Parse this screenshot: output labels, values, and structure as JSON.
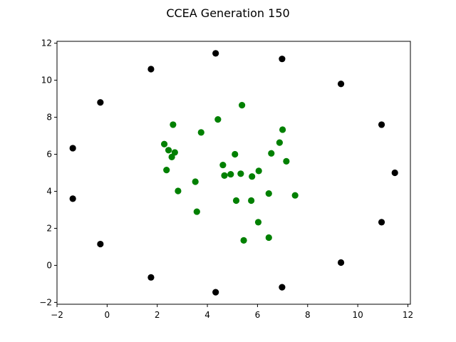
{
  "chart_data": {
    "type": "scatter",
    "title": "CCEA Generation 150",
    "xlabel": "",
    "ylabel": "",
    "xlim": [
      -2,
      12.1
    ],
    "ylim": [
      -2.1,
      12.1
    ],
    "xticks": [
      -2,
      0,
      2,
      4,
      6,
      8,
      10,
      12
    ],
    "yticks": [
      -2,
      0,
      2,
      4,
      6,
      8,
      10,
      12
    ],
    "grid": false,
    "series": [
      {
        "color": "#000000",
        "points": [
          {
            "x": 4.33,
            "y": 11.45
          },
          {
            "x": 6.98,
            "y": 11.15
          },
          {
            "x": 1.75,
            "y": 10.6
          },
          {
            "x": 9.33,
            "y": 9.8
          },
          {
            "x": -0.27,
            "y": 8.8
          },
          {
            "x": 10.95,
            "y": 7.6
          },
          {
            "x": -1.37,
            "y": 6.33
          },
          {
            "x": 11.48,
            "y": 5.0
          },
          {
            "x": -1.37,
            "y": 3.6
          },
          {
            "x": 10.95,
            "y": 2.33
          },
          {
            "x": -0.27,
            "y": 1.15
          },
          {
            "x": 9.33,
            "y": 0.15
          },
          {
            "x": 1.75,
            "y": -0.65
          },
          {
            "x": 6.98,
            "y": -1.18
          },
          {
            "x": 4.33,
            "y": -1.45
          }
        ]
      },
      {
        "color": "#008000",
        "points": [
          {
            "x": 5.38,
            "y": 8.65
          },
          {
            "x": 4.42,
            "y": 7.88
          },
          {
            "x": 2.63,
            "y": 7.6
          },
          {
            "x": 7.0,
            "y": 7.33
          },
          {
            "x": 3.75,
            "y": 7.18
          },
          {
            "x": 6.88,
            "y": 6.63
          },
          {
            "x": 2.28,
            "y": 6.55
          },
          {
            "x": 2.45,
            "y": 6.22
          },
          {
            "x": 2.7,
            "y": 6.1
          },
          {
            "x": 6.55,
            "y": 6.05
          },
          {
            "x": 5.1,
            "y": 6.0
          },
          {
            "x": 2.58,
            "y": 5.85
          },
          {
            "x": 7.15,
            "y": 5.62
          },
          {
            "x": 4.62,
            "y": 5.42
          },
          {
            "x": 2.37,
            "y": 5.15
          },
          {
            "x": 6.05,
            "y": 5.1
          },
          {
            "x": 5.33,
            "y": 4.95
          },
          {
            "x": 4.93,
            "y": 4.92
          },
          {
            "x": 4.68,
            "y": 4.85
          },
          {
            "x": 5.78,
            "y": 4.8
          },
          {
            "x": 3.52,
            "y": 4.52
          },
          {
            "x": 2.83,
            "y": 4.02
          },
          {
            "x": 6.45,
            "y": 3.88
          },
          {
            "x": 7.5,
            "y": 3.78
          },
          {
            "x": 5.15,
            "y": 3.5
          },
          {
            "x": 5.75,
            "y": 3.5
          },
          {
            "x": 3.58,
            "y": 2.9
          },
          {
            "x": 6.03,
            "y": 2.33
          },
          {
            "x": 6.45,
            "y": 1.5
          },
          {
            "x": 5.45,
            "y": 1.35
          }
        ]
      }
    ]
  }
}
